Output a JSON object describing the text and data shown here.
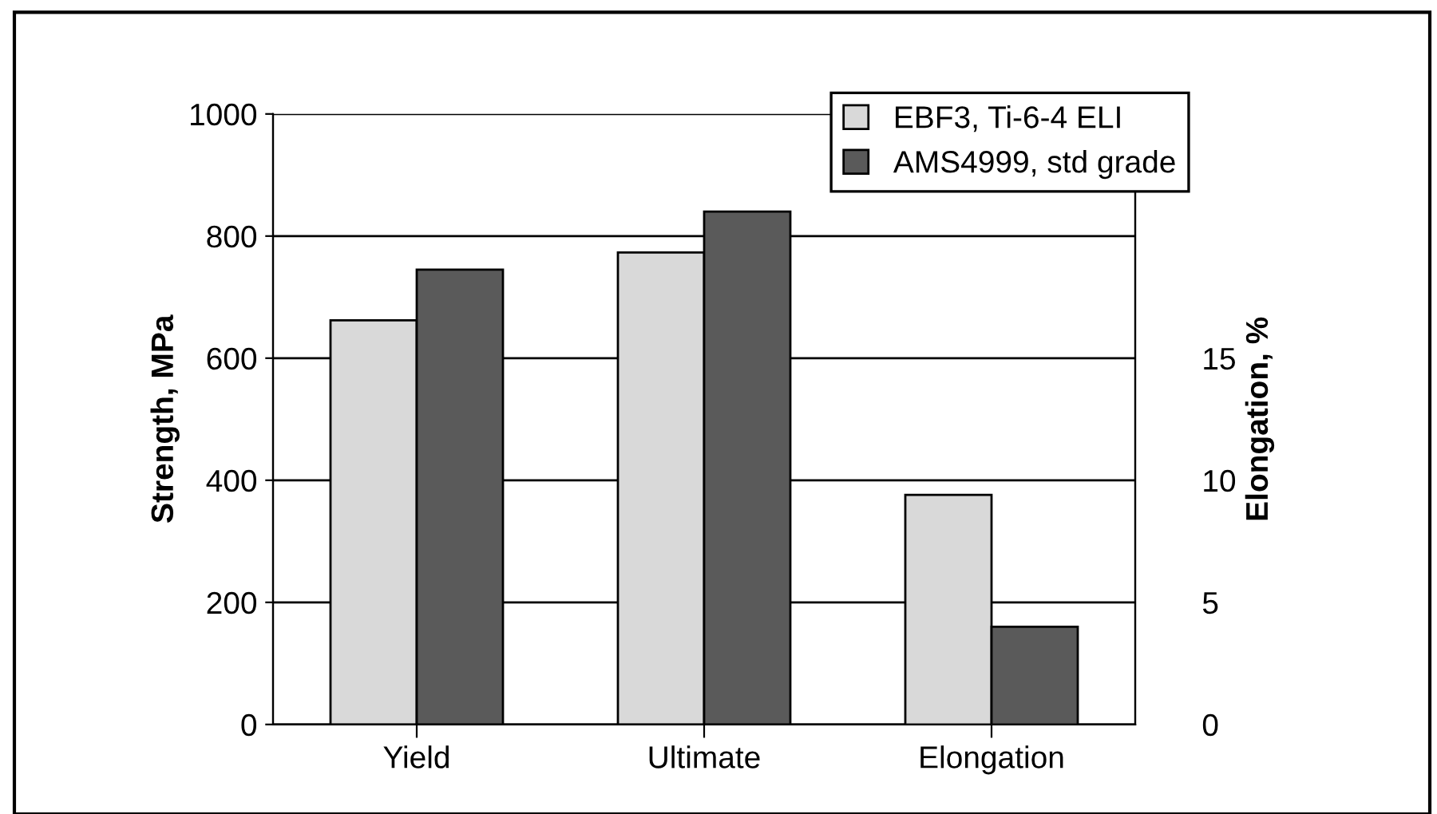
{
  "chart_data": {
    "type": "bar",
    "ylabel": "Strength, MPa",
    "y2label": "Elongation, %",
    "categories": [
      "Yield",
      "Ultimate",
      "Elongation"
    ],
    "series": [
      {
        "name": "EBF3, Ti-6-4 ELI",
        "color": "#d9d9d9",
        "values": [
          662,
          773,
          null
        ]
      },
      {
        "name": "AMS4999, std grade",
        "color": "#5a5a5a",
        "values": [
          745,
          840,
          null
        ]
      },
      {
        "color": "#d9d9d9",
        "values": [
          null,
          null,
          9.4
        ],
        "axis": "y2"
      },
      {
        "color": "#5a5a5a",
        "values": [
          null,
          null,
          4.0
        ],
        "axis": "y2"
      }
    ],
    "ylim": [
      0,
      1000
    ],
    "yticks": [
      0,
      200,
      400,
      600,
      800,
      1000
    ],
    "y2lim": [
      0,
      25
    ],
    "y2ticks": [
      0,
      5,
      10,
      15
    ],
    "grid": "y",
    "legend": "top right"
  }
}
